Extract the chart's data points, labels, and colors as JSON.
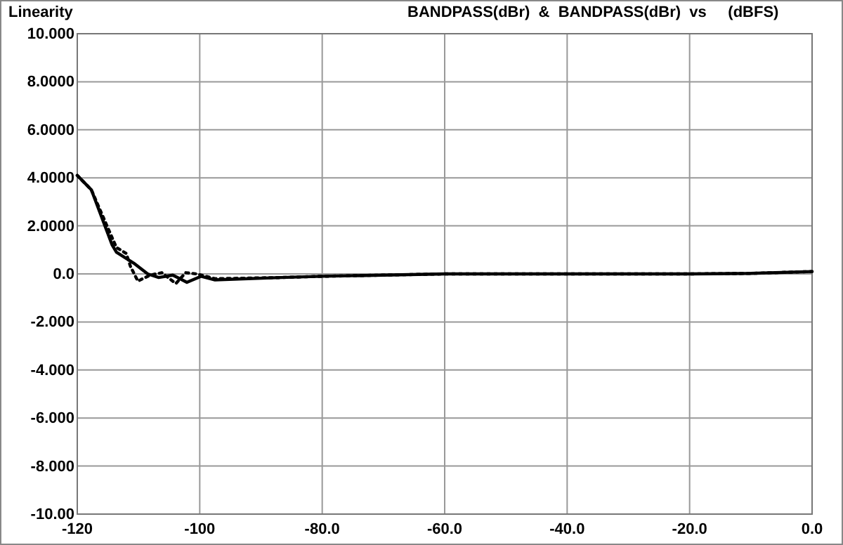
{
  "chart_data": {
    "type": "line",
    "title": "Linearity",
    "subtitle": "BANDPASS(dBr)  &  BANDPASS(dBr)  vs     (dBFS)",
    "xlim": [
      -120,
      0
    ],
    "ylim": [
      -10,
      10
    ],
    "xticks": [
      {
        "value": -120,
        "label": "-120"
      },
      {
        "value": -100,
        "label": "-100"
      },
      {
        "value": -80,
        "label": "-80.0"
      },
      {
        "value": -60,
        "label": "-60.0"
      },
      {
        "value": -40,
        "label": "-40.0"
      },
      {
        "value": -20,
        "label": "-20.0"
      },
      {
        "value": 0,
        "label": "0.0"
      }
    ],
    "yticks": [
      {
        "value": 10,
        "label": "10.000"
      },
      {
        "value": 8,
        "label": "8.0000"
      },
      {
        "value": 6,
        "label": "6.0000"
      },
      {
        "value": 4,
        "label": "4.0000"
      },
      {
        "value": 2,
        "label": "2.0000"
      },
      {
        "value": 0,
        "label": "0.0"
      },
      {
        "value": -2,
        "label": "-2.000"
      },
      {
        "value": -4,
        "label": "-4.000"
      },
      {
        "value": -6,
        "label": "-6.000"
      },
      {
        "value": -8,
        "label": "-8.000"
      },
      {
        "value": -10,
        "label": "-10.00"
      }
    ],
    "grid": true,
    "series": [
      {
        "color": "#000000",
        "line_style": "solid",
        "x": [
          -120,
          -117.7,
          -114.3,
          -113.6,
          -110.8,
          -108.5,
          -106.7,
          -104.4,
          -102.1,
          -99.8,
          -97.5,
          -86.7,
          -80,
          -60,
          -40,
          -20,
          -10,
          0
        ],
        "values": [
          4.1,
          3.5,
          1.2,
          0.9,
          0.45,
          0,
          -0.15,
          -0.05,
          -0.35,
          -0.1,
          -0.25,
          -0.15,
          -0.1,
          0,
          0,
          0,
          0.02,
          0.1
        ]
      },
      {
        "color": "#000000",
        "line_style": "dotted",
        "x": [
          -120,
          -117.7,
          -114.3,
          -113.6,
          -112,
          -111.3,
          -110.1,
          -108.1,
          -106.2,
          -103.9,
          -102.3,
          -100.5,
          -97.5,
          -86.7,
          -80,
          -60,
          -40,
          -20,
          -10,
          0
        ],
        "values": [
          4.1,
          3.5,
          1.5,
          1.1,
          0.85,
          0.3,
          -0.3,
          -0.05,
          0.05,
          -0.4,
          0.05,
          0,
          -0.2,
          -0.15,
          -0.1,
          0,
          0,
          0,
          0.02,
          0.1
        ]
      }
    ]
  }
}
